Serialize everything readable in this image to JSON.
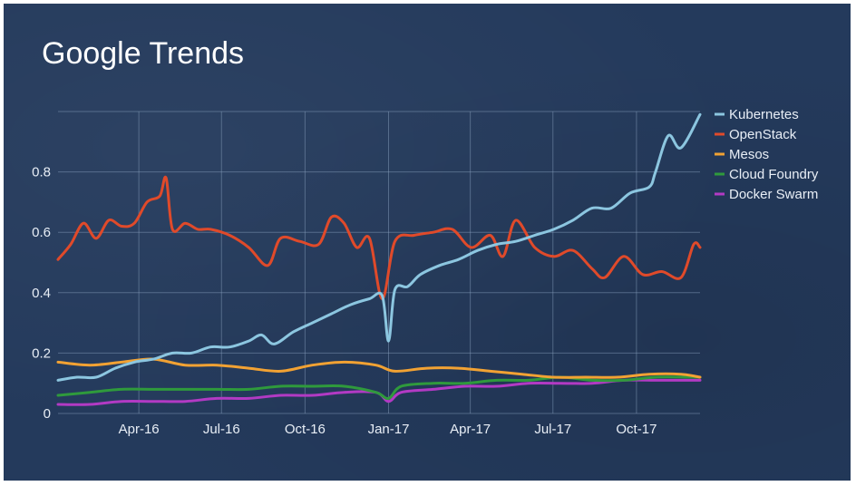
{
  "slide": {
    "title": "Google Trends"
  },
  "colors": {
    "background": "#243a5c",
    "grid": "#8fa6c4",
    "text": "#e8eef6"
  },
  "chart_data": {
    "type": "line",
    "title": "Google Trends",
    "xlabel": "",
    "ylabel": "",
    "x_range": [
      "2016-01-03",
      "2017-12-10"
    ],
    "ylim": [
      0,
      1.0
    ],
    "grid": true,
    "legend_position": "right",
    "x_ticks": [
      {
        "date": "2016-04-01",
        "label": "Apr-16"
      },
      {
        "date": "2016-07-01",
        "label": "Jul-16"
      },
      {
        "date": "2016-10-01",
        "label": "Oct-16"
      },
      {
        "date": "2017-01-01",
        "label": "Jan-17"
      },
      {
        "date": "2017-04-01",
        "label": "Apr-17"
      },
      {
        "date": "2017-07-01",
        "label": "Jul-17"
      },
      {
        "date": "2017-10-01",
        "label": "Oct-17"
      }
    ],
    "y_ticks": [
      {
        "value": 0,
        "label": "0"
      },
      {
        "value": 0.2,
        "label": "0.2"
      },
      {
        "value": 0.4,
        "label": "0.4"
      },
      {
        "value": 0.6,
        "label": "0.6"
      },
      {
        "value": 0.8,
        "label": "0.8"
      }
    ],
    "series": [
      {
        "name": "Kubernetes",
        "color": "#8cc6e0",
        "points": [
          [
            "2016-01-03",
            0.11
          ],
          [
            "2016-01-24",
            0.12
          ],
          [
            "2016-02-14",
            0.12
          ],
          [
            "2016-03-06",
            0.15
          ],
          [
            "2016-03-27",
            0.17
          ],
          [
            "2016-04-17",
            0.18
          ],
          [
            "2016-05-08",
            0.2
          ],
          [
            "2016-05-29",
            0.2
          ],
          [
            "2016-06-19",
            0.22
          ],
          [
            "2016-07-10",
            0.22
          ],
          [
            "2016-07-31",
            0.24
          ],
          [
            "2016-08-14",
            0.26
          ],
          [
            "2016-08-28",
            0.23
          ],
          [
            "2016-09-18",
            0.27
          ],
          [
            "2016-10-09",
            0.3
          ],
          [
            "2016-10-30",
            0.33
          ],
          [
            "2016-11-20",
            0.36
          ],
          [
            "2016-12-11",
            0.38
          ],
          [
            "2016-12-25",
            0.39
          ],
          [
            "2017-01-01",
            0.24
          ],
          [
            "2017-01-08",
            0.41
          ],
          [
            "2017-01-22",
            0.42
          ],
          [
            "2017-02-05",
            0.46
          ],
          [
            "2017-02-26",
            0.49
          ],
          [
            "2017-03-19",
            0.51
          ],
          [
            "2017-04-09",
            0.54
          ],
          [
            "2017-04-30",
            0.56
          ],
          [
            "2017-05-21",
            0.57
          ],
          [
            "2017-06-11",
            0.59
          ],
          [
            "2017-07-02",
            0.61
          ],
          [
            "2017-07-23",
            0.64
          ],
          [
            "2017-08-13",
            0.68
          ],
          [
            "2017-09-03",
            0.68
          ],
          [
            "2017-09-24",
            0.73
          ],
          [
            "2017-10-15",
            0.75
          ],
          [
            "2017-10-22",
            0.8
          ],
          [
            "2017-11-05",
            0.92
          ],
          [
            "2017-11-19",
            0.88
          ],
          [
            "2017-12-10",
            0.99
          ]
        ]
      },
      {
        "name": "OpenStack",
        "color": "#e04a2a",
        "points": [
          [
            "2016-01-03",
            0.51
          ],
          [
            "2016-01-17",
            0.56
          ],
          [
            "2016-01-31",
            0.63
          ],
          [
            "2016-02-14",
            0.58
          ],
          [
            "2016-02-28",
            0.64
          ],
          [
            "2016-03-13",
            0.62
          ],
          [
            "2016-03-27",
            0.63
          ],
          [
            "2016-04-10",
            0.7
          ],
          [
            "2016-04-24",
            0.72
          ],
          [
            "2016-05-01",
            0.78
          ],
          [
            "2016-05-08",
            0.61
          ],
          [
            "2016-05-22",
            0.63
          ],
          [
            "2016-06-05",
            0.61
          ],
          [
            "2016-06-19",
            0.61
          ],
          [
            "2016-07-10",
            0.59
          ],
          [
            "2016-07-31",
            0.55
          ],
          [
            "2016-08-21",
            0.49
          ],
          [
            "2016-09-04",
            0.58
          ],
          [
            "2016-09-25",
            0.57
          ],
          [
            "2016-10-16",
            0.56
          ],
          [
            "2016-10-30",
            0.65
          ],
          [
            "2016-11-13",
            0.63
          ],
          [
            "2016-11-27",
            0.55
          ],
          [
            "2016-12-11",
            0.58
          ],
          [
            "2016-12-25",
            0.38
          ],
          [
            "2017-01-08",
            0.57
          ],
          [
            "2017-01-29",
            0.59
          ],
          [
            "2017-02-19",
            0.6
          ],
          [
            "2017-03-12",
            0.61
          ],
          [
            "2017-04-02",
            0.55
          ],
          [
            "2017-04-23",
            0.59
          ],
          [
            "2017-05-07",
            0.52
          ],
          [
            "2017-05-21",
            0.64
          ],
          [
            "2017-06-11",
            0.55
          ],
          [
            "2017-07-02",
            0.52
          ],
          [
            "2017-07-23",
            0.54
          ],
          [
            "2017-08-13",
            0.48
          ],
          [
            "2017-08-27",
            0.45
          ],
          [
            "2017-09-17",
            0.52
          ],
          [
            "2017-10-08",
            0.46
          ],
          [
            "2017-10-29",
            0.47
          ],
          [
            "2017-11-19",
            0.45
          ],
          [
            "2017-12-03",
            0.56
          ],
          [
            "2017-12-10",
            0.55
          ]
        ]
      },
      {
        "name": "Mesos",
        "color": "#f2a233",
        "points": [
          [
            "2016-01-03",
            0.17
          ],
          [
            "2016-02-07",
            0.16
          ],
          [
            "2016-03-13",
            0.17
          ],
          [
            "2016-04-17",
            0.18
          ],
          [
            "2016-05-22",
            0.16
          ],
          [
            "2016-06-26",
            0.16
          ],
          [
            "2016-07-31",
            0.15
          ],
          [
            "2016-09-04",
            0.14
          ],
          [
            "2016-10-09",
            0.16
          ],
          [
            "2016-11-13",
            0.17
          ],
          [
            "2016-12-18",
            0.16
          ],
          [
            "2017-01-08",
            0.14
          ],
          [
            "2017-02-12",
            0.15
          ],
          [
            "2017-03-19",
            0.15
          ],
          [
            "2017-04-23",
            0.14
          ],
          [
            "2017-05-28",
            0.13
          ],
          [
            "2017-07-02",
            0.12
          ],
          [
            "2017-08-06",
            0.12
          ],
          [
            "2017-09-10",
            0.12
          ],
          [
            "2017-10-15",
            0.13
          ],
          [
            "2017-11-19",
            0.13
          ],
          [
            "2017-12-10",
            0.12
          ]
        ]
      },
      {
        "name": "Cloud Foundry",
        "color": "#2f9a3c",
        "points": [
          [
            "2016-01-03",
            0.06
          ],
          [
            "2016-02-07",
            0.07
          ],
          [
            "2016-03-13",
            0.08
          ],
          [
            "2016-04-17",
            0.08
          ],
          [
            "2016-05-22",
            0.08
          ],
          [
            "2016-06-26",
            0.08
          ],
          [
            "2016-07-31",
            0.08
          ],
          [
            "2016-09-04",
            0.09
          ],
          [
            "2016-10-09",
            0.09
          ],
          [
            "2016-11-13",
            0.09
          ],
          [
            "2016-12-18",
            0.07
          ],
          [
            "2017-01-01",
            0.05
          ],
          [
            "2017-01-15",
            0.09
          ],
          [
            "2017-02-19",
            0.1
          ],
          [
            "2017-03-26",
            0.1
          ],
          [
            "2017-04-30",
            0.11
          ],
          [
            "2017-06-04",
            0.11
          ],
          [
            "2017-07-09",
            0.12
          ],
          [
            "2017-08-13",
            0.11
          ],
          [
            "2017-09-17",
            0.11
          ],
          [
            "2017-10-22",
            0.12
          ],
          [
            "2017-11-26",
            0.12
          ],
          [
            "2017-12-10",
            0.12
          ]
        ]
      },
      {
        "name": "Docker Swarm",
        "color": "#b23ac4",
        "points": [
          [
            "2016-01-03",
            0.03
          ],
          [
            "2016-02-07",
            0.03
          ],
          [
            "2016-03-13",
            0.04
          ],
          [
            "2016-04-17",
            0.04
          ],
          [
            "2016-05-22",
            0.04
          ],
          [
            "2016-06-26",
            0.05
          ],
          [
            "2016-07-31",
            0.05
          ],
          [
            "2016-09-04",
            0.06
          ],
          [
            "2016-10-09",
            0.06
          ],
          [
            "2016-11-13",
            0.07
          ],
          [
            "2016-12-18",
            0.07
          ],
          [
            "2017-01-01",
            0.04
          ],
          [
            "2017-01-15",
            0.07
          ],
          [
            "2017-02-19",
            0.08
          ],
          [
            "2017-03-26",
            0.09
          ],
          [
            "2017-04-30",
            0.09
          ],
          [
            "2017-06-04",
            0.1
          ],
          [
            "2017-07-09",
            0.1
          ],
          [
            "2017-08-13",
            0.1
          ],
          [
            "2017-09-17",
            0.11
          ],
          [
            "2017-10-22",
            0.11
          ],
          [
            "2017-11-26",
            0.11
          ],
          [
            "2017-12-10",
            0.11
          ]
        ]
      }
    ]
  }
}
